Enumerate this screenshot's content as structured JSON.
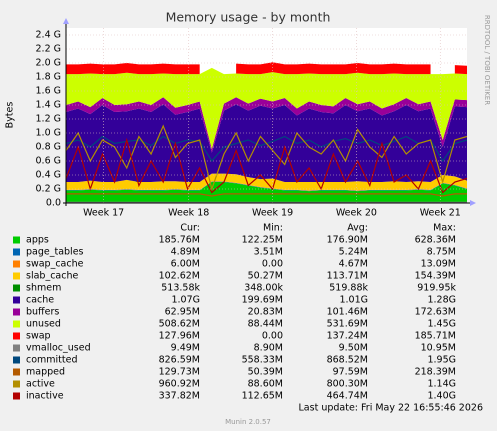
{
  "chart_data": {
    "type": "area",
    "title": "Memory usage - by month",
    "y_label": "Bytes",
    "side_text": "RRDTOOL / TOBI OETIKER",
    "last_update": "Last update: Fri May 22 16:55:46 2026",
    "version": "Munin 2.0.57",
    "grid": true,
    "ylim": [
      0,
      2.5
    ],
    "yticks": [
      {
        "value": 0,
        "label": "0.0"
      },
      {
        "value": 0.2,
        "label": "0.2 G"
      },
      {
        "value": 0.4,
        "label": "0.4 G"
      },
      {
        "value": 0.6,
        "label": "0.6 G"
      },
      {
        "value": 0.8,
        "label": "0.8 G"
      },
      {
        "value": 1.0,
        "label": "1.0 G"
      },
      {
        "value": 1.2,
        "label": "1.2 G"
      },
      {
        "value": 1.4,
        "label": "1.4 G"
      },
      {
        "value": 1.6,
        "label": "1.6 G"
      },
      {
        "value": 1.8,
        "label": "1.8 G"
      },
      {
        "value": 2.0,
        "label": "2.0 G"
      },
      {
        "value": 2.2,
        "label": "2.2 G"
      },
      {
        "value": 2.4,
        "label": "2.4 G"
      }
    ],
    "xlim": [
      0,
      33
    ],
    "xticks": [
      {
        "value": 3.1,
        "label": "Week 17"
      },
      {
        "value": 10.1,
        "label": "Week 18"
      },
      {
        "value": 17.0,
        "label": "Week 19"
      },
      {
        "value": 23.9,
        "label": "Week 20"
      },
      {
        "value": 30.8,
        "label": "Week 21"
      }
    ],
    "x": [
      0,
      1,
      2,
      3,
      4,
      5,
      6,
      7,
      8,
      9,
      10,
      11,
      12,
      13,
      14,
      15,
      16,
      17,
      18,
      19,
      20,
      21,
      22,
      23,
      24,
      25,
      26,
      27,
      28,
      29,
      30,
      31,
      32,
      33
    ],
    "series": [
      {
        "name": "apps",
        "color": "#00CC00",
        "style": "area",
        "values": [
          0.18,
          0.18,
          0.19,
          0.18,
          0.18,
          0.19,
          0.18,
          0.18,
          0.18,
          0.19,
          0.18,
          0.18,
          0.3,
          0.3,
          0.28,
          0.25,
          0.22,
          0.2,
          0.18,
          0.18,
          0.17,
          0.18,
          0.18,
          0.18,
          0.17,
          0.18,
          0.18,
          0.18,
          0.18,
          0.19,
          0.18,
          0.28,
          0.25,
          0.2
        ]
      },
      {
        "name": "page_tables",
        "color": "#0066B3",
        "style": "area",
        "values": [
          0.005,
          0.005,
          0.005,
          0.005,
          0.005,
          0.005,
          0.005,
          0.005,
          0.005,
          0.005,
          0.005,
          0.005,
          0.005,
          0.005,
          0.005,
          0.005,
          0.005,
          0.005,
          0.005,
          0.005,
          0.005,
          0.005,
          0.005,
          0.005,
          0.005,
          0.005,
          0.005,
          0.005,
          0.005,
          0.005,
          0.005,
          0.005,
          0.005,
          0.005
        ]
      },
      {
        "name": "swap_cache",
        "color": "#FF8000",
        "style": "area",
        "values": [
          0.005,
          0.005,
          0.005,
          0.005,
          0.005,
          0.005,
          0.005,
          0.005,
          0.005,
          0.005,
          0.005,
          0.005,
          0.005,
          0.005,
          0.005,
          0.005,
          0.005,
          0.005,
          0.005,
          0.005,
          0.005,
          0.005,
          0.005,
          0.005,
          0.005,
          0.005,
          0.005,
          0.005,
          0.005,
          0.005,
          0.005,
          0.005,
          0.005,
          0.005
        ]
      },
      {
        "name": "slab_cache",
        "color": "#FFCC00",
        "style": "area",
        "values": [
          0.11,
          0.11,
          0.12,
          0.11,
          0.11,
          0.13,
          0.11,
          0.11,
          0.12,
          0.11,
          0.11,
          0.11,
          0.11,
          0.11,
          0.12,
          0.11,
          0.11,
          0.14,
          0.11,
          0.11,
          0.12,
          0.11,
          0.11,
          0.11,
          0.13,
          0.11,
          0.11,
          0.12,
          0.11,
          0.11,
          0.11,
          0.11,
          0.12,
          0.11
        ]
      },
      {
        "name": "shmem",
        "color": "#008F00",
        "style": "area",
        "values": [
          0.0005,
          0.0005,
          0.0005,
          0.0005,
          0.0005,
          0.0005,
          0.0005,
          0.0005,
          0.0005,
          0.0005,
          0.0005,
          0.0005,
          0.0005,
          0.0005,
          0.0005,
          0.0005,
          0.0005,
          0.0005,
          0.0005,
          0.0005,
          0.0005,
          0.0005,
          0.0005,
          0.0005,
          0.0005,
          0.0005,
          0.0005,
          0.0005,
          0.0005,
          0.0005,
          0.0005,
          0.0005,
          0.0005,
          0.0005
        ]
      },
      {
        "name": "cache",
        "color": "#330099",
        "style": "area",
        "values": [
          1.0,
          1.05,
          0.95,
          1.1,
          1.0,
          0.98,
          1.05,
          1.0,
          1.1,
          0.95,
          1.0,
          1.05,
          0.3,
          0.9,
          1.0,
          0.95,
          1.05,
          1.0,
          1.1,
          0.95,
          1.05,
          1.0,
          0.98,
          1.1,
          1.0,
          1.05,
          0.95,
          1.0,
          1.1,
          1.0,
          1.05,
          0.4,
          1.0,
          1.05
        ]
      },
      {
        "name": "buffers",
        "color": "#990099",
        "style": "area",
        "values": [
          0.1,
          0.1,
          0.1,
          0.1,
          0.1,
          0.1,
          0.1,
          0.1,
          0.1,
          0.1,
          0.1,
          0.1,
          0.05,
          0.1,
          0.1,
          0.1,
          0.1,
          0.1,
          0.1,
          0.1,
          0.1,
          0.1,
          0.1,
          0.1,
          0.1,
          0.1,
          0.1,
          0.1,
          0.1,
          0.1,
          0.1,
          0.1,
          0.1,
          0.1
        ]
      },
      {
        "name": "unused",
        "color": "#CCFF00",
        "style": "area",
        "values": [
          0.44,
          0.39,
          0.48,
          0.34,
          0.44,
          0.45,
          0.39,
          0.44,
          0.34,
          0.48,
          0.44,
          0.39,
          1.16,
          0.42,
          0.34,
          0.42,
          0.35,
          0.42,
          0.34,
          0.49,
          0.4,
          0.44,
          0.46,
          0.34,
          0.45,
          0.39,
          0.49,
          0.44,
          0.34,
          0.43,
          0.39,
          0.94,
          0.37,
          0.37
        ]
      },
      {
        "name": "swap",
        "color": "#FF0000",
        "style": "area",
        "values": [
          0.14,
          0.14,
          0.14,
          0.14,
          0.14,
          0.14,
          0.14,
          0.14,
          0.14,
          0.14,
          0.14,
          0.14,
          null,
          null,
          0.14,
          0.14,
          0.14,
          0.14,
          0.14,
          0.14,
          0.14,
          0.14,
          0.14,
          0.14,
          0.14,
          0.14,
          0.14,
          0.14,
          0.14,
          0.14,
          0.14,
          null,
          0.12,
          0.12
        ]
      },
      {
        "name": "vmalloc_used",
        "color": "#808080",
        "style": "line",
        "values": [
          0.0095,
          0.0095,
          0.0095,
          0.0095,
          0.0095,
          0.0095,
          0.0095,
          0.0095,
          0.0095,
          0.0095,
          0.0095,
          0.0095,
          0.0095,
          0.0095,
          0.0095,
          0.0095,
          0.0095,
          0.0095,
          0.0095,
          0.0095,
          0.0095,
          0.0095,
          0.0095,
          0.0095,
          0.0095,
          0.0095,
          0.0095,
          0.0095,
          0.0095,
          0.0095,
          0.0095,
          0.0095,
          0.0095,
          0.0095
        ]
      },
      {
        "name": "committed",
        "color": "#00487D",
        "style": "line",
        "values": [
          0.85,
          0.9,
          0.8,
          0.95,
          0.85,
          0.88,
          0.9,
          0.82,
          0.95,
          0.85,
          0.9,
          0.88,
          0.6,
          0.8,
          0.85,
          0.9,
          0.82,
          0.88,
          0.95,
          0.85,
          0.9,
          0.8,
          0.88,
          0.92,
          0.85,
          0.9,
          0.82,
          0.88,
          0.95,
          0.85,
          0.9,
          0.6,
          0.85,
          0.9
        ]
      },
      {
        "name": "mapped",
        "color": "#B35A00",
        "style": "line",
        "values": [
          0.13,
          0.13,
          0.13,
          0.13,
          0.13,
          0.13,
          0.13,
          0.13,
          0.13,
          0.13,
          0.13,
          0.13,
          0.1,
          0.13,
          0.13,
          0.13,
          0.13,
          0.13,
          0.13,
          0.13,
          0.13,
          0.13,
          0.13,
          0.13,
          0.13,
          0.13,
          0.13,
          0.13,
          0.13,
          0.13,
          0.13,
          0.1,
          0.13,
          0.13
        ]
      },
      {
        "name": "active",
        "color": "#B38F00",
        "style": "line",
        "values": [
          0.75,
          1.0,
          0.6,
          0.9,
          0.8,
          0.5,
          0.95,
          0.7,
          1.1,
          0.65,
          0.85,
          0.9,
          0.2,
          0.7,
          1.0,
          0.6,
          0.95,
          0.75,
          0.55,
          1.0,
          0.8,
          0.7,
          0.9,
          0.6,
          1.05,
          0.8,
          0.65,
          0.95,
          0.7,
          0.85,
          0.9,
          0.3,
          0.9,
          0.95
        ]
      },
      {
        "name": "inactive",
        "color": "#B30000",
        "style": "line",
        "values": [
          0.35,
          0.8,
          0.2,
          0.7,
          0.3,
          0.9,
          0.25,
          0.6,
          0.3,
          0.85,
          0.2,
          0.5,
          0.15,
          0.3,
          0.75,
          0.25,
          0.4,
          0.2,
          0.8,
          0.3,
          0.5,
          0.2,
          0.7,
          0.3,
          0.6,
          0.25,
          0.85,
          0.3,
          0.4,
          0.2,
          0.6,
          0.15,
          0.3,
          0.35
        ]
      }
    ],
    "legend": {
      "headers": [
        "Cur:",
        "Min:",
        "Avg:",
        "Max:"
      ],
      "rows": [
        [
          "185.76M",
          "122.25M",
          "176.90M",
          "628.36M"
        ],
        [
          "4.89M",
          "3.51M",
          "5.24M",
          "8.75M"
        ],
        [
          "6.00M",
          "0.00",
          "4.67M",
          "13.09M"
        ],
        [
          "102.62M",
          "50.27M",
          "113.71M",
          "154.39M"
        ],
        [
          "513.58k",
          "348.00k",
          "519.88k",
          "919.95k"
        ],
        [
          "1.07G",
          "199.69M",
          "1.01G",
          "1.28G"
        ],
        [
          "62.95M",
          "20.83M",
          "101.46M",
          "172.63M"
        ],
        [
          "508.62M",
          "88.44M",
          "531.69M",
          "1.45G"
        ],
        [
          "127.96M",
          "0.00",
          "137.24M",
          "185.71M"
        ],
        [
          "9.49M",
          "8.90M",
          "9.50M",
          "10.95M"
        ],
        [
          "826.59M",
          "558.33M",
          "868.52M",
          "1.95G"
        ],
        [
          "129.73M",
          "50.39M",
          "97.59M",
          "218.39M"
        ],
        [
          "960.92M",
          "88.60M",
          "800.30M",
          "1.14G"
        ],
        [
          "337.82M",
          "112.65M",
          "464.74M",
          "1.40G"
        ]
      ]
    }
  }
}
